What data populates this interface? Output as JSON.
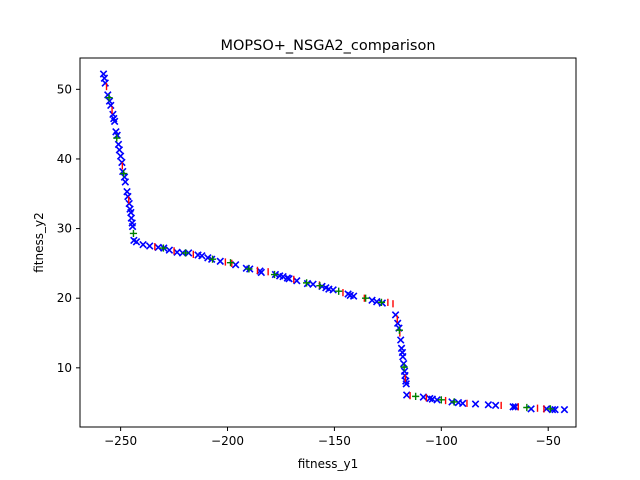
{
  "chart_data": {
    "type": "scatter",
    "title": "MOPSO+_NSGA2_comparison",
    "xlabel": "fitness_y1",
    "ylabel": "fitness_y2",
    "xlim": [
      -269,
      -37
    ],
    "ylim": [
      1.5,
      54.5
    ],
    "xticks": [
      -250,
      -200,
      -150,
      -100,
      -50
    ],
    "yticks": [
      10,
      20,
      30,
      40,
      50
    ],
    "grid": false,
    "colors": {
      "red": "#ff0000",
      "green": "#008000",
      "blue": "#0000ff"
    },
    "series": [
      {
        "marker": "x",
        "color": "#0000ff",
        "points": [
          [
            -258,
            52.2
          ],
          [
            -257.6,
            51.6
          ],
          [
            -257.2,
            50.9
          ],
          [
            -256,
            49.2
          ],
          [
            -255.2,
            48.3
          ],
          [
            -254.6,
            47.7
          ],
          [
            -253.6,
            46.4
          ],
          [
            -253.2,
            45.8
          ],
          [
            -252.8,
            45.4
          ],
          [
            -252.2,
            43.9
          ],
          [
            -251.6,
            43.4
          ],
          [
            -251,
            42.1
          ],
          [
            -250.6,
            41.3
          ],
          [
            -250,
            40.4
          ],
          [
            -249.4,
            39.5
          ],
          [
            -249,
            38.2
          ],
          [
            -248.2,
            37.4
          ],
          [
            -247.8,
            36.7
          ],
          [
            -247,
            35.3
          ],
          [
            -246.6,
            34.6
          ],
          [
            -246,
            33.6
          ],
          [
            -245.6,
            32.8
          ],
          [
            -245.2,
            32.3
          ],
          [
            -245,
            31.5
          ],
          [
            -244.6,
            30.8
          ],
          [
            -244.4,
            30.3
          ],
          [
            -243.8,
            28.3
          ],
          [
            -242.6,
            28.1
          ],
          [
            -239.5,
            27.7
          ],
          [
            -236.4,
            27.5
          ],
          [
            -232.4,
            27.3
          ],
          [
            -229.8,
            27.2
          ],
          [
            -227.2,
            26.9
          ],
          [
            -223.6,
            26.6
          ],
          [
            -221,
            26.5
          ],
          [
            -218.2,
            26.5
          ],
          [
            -213.8,
            26.2
          ],
          [
            -212,
            26.1
          ],
          [
            -209.2,
            25.8
          ],
          [
            -207.4,
            25.6
          ],
          [
            -203.4,
            25.3
          ],
          [
            -196.2,
            24.8
          ],
          [
            -191.2,
            24.3
          ],
          [
            -189.6,
            24.2
          ],
          [
            -184.8,
            23.9
          ],
          [
            -184.2,
            23.7
          ],
          [
            -177.6,
            23.4
          ],
          [
            -175.6,
            23.2
          ],
          [
            -174,
            23.1
          ],
          [
            -172,
            22.9
          ],
          [
            -171.2,
            22.8
          ],
          [
            -167.6,
            22.5
          ],
          [
            -162.6,
            22.1
          ],
          [
            -160,
            22
          ],
          [
            -155.8,
            21.7
          ],
          [
            -154,
            21.5
          ],
          [
            -152.6,
            21.3
          ],
          [
            -150.6,
            21.2
          ],
          [
            -143.6,
            20.6
          ],
          [
            -142.6,
            20.4
          ],
          [
            -141,
            20.3
          ],
          [
            -132.4,
            19.7
          ],
          [
            -130.2,
            19.5
          ],
          [
            -127.6,
            19.3
          ],
          [
            -121.4,
            17.6
          ],
          [
            -120.4,
            16.4
          ],
          [
            -119.8,
            15.7
          ],
          [
            -119,
            14
          ],
          [
            -118.6,
            12.8
          ],
          [
            -118.2,
            12.2
          ],
          [
            -118,
            11.6
          ],
          [
            -117.6,
            10.6
          ],
          [
            -117.2,
            9.5
          ],
          [
            -117,
            8.9
          ],
          [
            -116.6,
            8.1
          ],
          [
            -116.4,
            7.7
          ],
          [
            -116.2,
            6.1
          ],
          [
            -108.4,
            5.8
          ],
          [
            -105.4,
            5.6
          ],
          [
            -104.2,
            5.5
          ],
          [
            -102,
            5.4
          ],
          [
            -95,
            5.1
          ],
          [
            -92,
            5
          ],
          [
            -90,
            4.9
          ],
          [
            -84,
            4.8
          ],
          [
            -78,
            4.7
          ],
          [
            -74.6,
            4.6
          ],
          [
            -66.4,
            4.4
          ],
          [
            -65.4,
            4.4
          ],
          [
            -58,
            4.1
          ],
          [
            -50.8,
            4.1
          ],
          [
            -48,
            4
          ],
          [
            -46.8,
            4
          ],
          [
            -42.4,
            4
          ]
        ]
      },
      {
        "marker": "|",
        "color": "#ff0000",
        "points": [
          [
            -256.6,
            50.4
          ],
          [
            -254,
            47
          ],
          [
            -249.2,
            39
          ],
          [
            -246.2,
            34.1
          ],
          [
            -234,
            27.4
          ],
          [
            -225,
            26.8
          ],
          [
            -216,
            26.3
          ],
          [
            -201,
            25.2
          ],
          [
            -198,
            25
          ],
          [
            -186,
            24
          ],
          [
            -181,
            23.8
          ],
          [
            -169,
            22.7
          ],
          [
            -157,
            21.9
          ],
          [
            -146,
            20.8
          ],
          [
            -136,
            20
          ],
          [
            -125,
            19.4
          ],
          [
            -122.6,
            19.2
          ],
          [
            -120.6,
            17
          ],
          [
            -119.4,
            15
          ],
          [
            -116.8,
            8.5
          ],
          [
            -114.6,
            6
          ],
          [
            -107,
            5.7
          ],
          [
            -98,
            5.3
          ],
          [
            -88,
            4.9
          ],
          [
            -72,
            4.6
          ],
          [
            -64,
            4.4
          ],
          [
            -55,
            4.2
          ],
          [
            -52,
            4.1
          ]
        ]
      },
      {
        "marker": "+",
        "color": "#008000",
        "points": [
          [
            -255.4,
            48.8
          ],
          [
            -251.8,
            43
          ],
          [
            -248.6,
            37.9
          ],
          [
            -244,
            29.3
          ],
          [
            -230,
            27.2
          ],
          [
            -219.6,
            26.5
          ],
          [
            -207,
            25.6
          ],
          [
            -198.6,
            25.1
          ],
          [
            -190,
            24.2
          ],
          [
            -178,
            23.4
          ],
          [
            -163,
            22.2
          ],
          [
            -156.8,
            21.8
          ],
          [
            -148,
            21
          ],
          [
            -135.4,
            20
          ],
          [
            -128,
            19.4
          ],
          [
            -119.6,
            15.4
          ],
          [
            -117.4,
            10.1
          ],
          [
            -112,
            5.9
          ],
          [
            -100,
            5.4
          ],
          [
            -94,
            5.1
          ],
          [
            -60,
            4.3
          ],
          [
            -49,
            4.1
          ]
        ]
      }
    ]
  }
}
